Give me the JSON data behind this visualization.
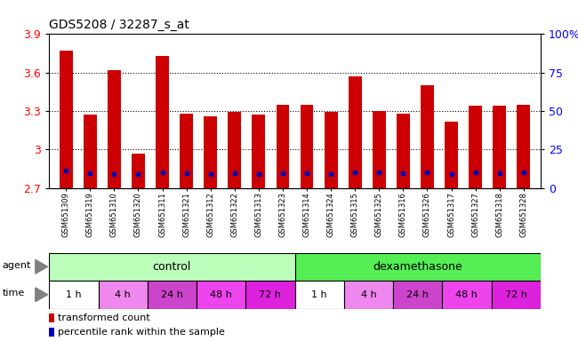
{
  "title": "GDS5208 / 32287_s_at",
  "samples": [
    "GSM651309",
    "GSM651319",
    "GSM651310",
    "GSM651320",
    "GSM651311",
    "GSM651321",
    "GSM651312",
    "GSM651322",
    "GSM651313",
    "GSM651323",
    "GSM651314",
    "GSM651324",
    "GSM651315",
    "GSM651325",
    "GSM651316",
    "GSM651326",
    "GSM651317",
    "GSM651327",
    "GSM651318",
    "GSM651328"
  ],
  "bar_values": [
    3.77,
    3.27,
    3.62,
    2.97,
    3.73,
    3.28,
    3.26,
    3.29,
    3.27,
    3.35,
    3.35,
    3.29,
    3.57,
    3.3,
    3.28,
    3.5,
    3.22,
    3.34,
    3.34,
    3.35
  ],
  "blue_markers": [
    2.835,
    2.815,
    2.81,
    2.808,
    2.825,
    2.813,
    2.808,
    2.813,
    2.808,
    2.813,
    2.813,
    2.808,
    2.82,
    2.82,
    2.813,
    2.82,
    2.805,
    2.82,
    2.813,
    2.82
  ],
  "ymin": 2.7,
  "ymax": 3.9,
  "yticks": [
    2.7,
    3.0,
    3.3,
    3.6,
    3.9
  ],
  "ytick_labels": [
    "2.7",
    "3",
    "3.3",
    "3.6",
    "3.9"
  ],
  "right_yticks_pct": [
    0,
    25,
    50,
    75,
    100
  ],
  "right_yticklabels": [
    "0",
    "25",
    "50",
    "75",
    "100%"
  ],
  "bar_color": "#cc0000",
  "blue_color": "#0000bb",
  "agent_control_color": "#bbffbb",
  "agent_dex_color": "#55ee55",
  "time_colors_cycle": [
    "#ffffff",
    "#ee88ee",
    "#cc44cc",
    "#ee44ee",
    "#dd22dd"
  ],
  "time_labels": [
    "1 h",
    "4 h",
    "24 h",
    "48 h",
    "72 h"
  ],
  "control_label": "control",
  "dex_label": "dexamethasone",
  "agent_label": "agent",
  "time_label": "time",
  "legend_red": "transformed count",
  "legend_blue": "percentile rank within the sample",
  "bar_width": 0.55,
  "xlabel_fontsize": 6.0,
  "ylabel_fontsize": 9,
  "title_fontsize": 10,
  "annotation_fontsize": 8
}
